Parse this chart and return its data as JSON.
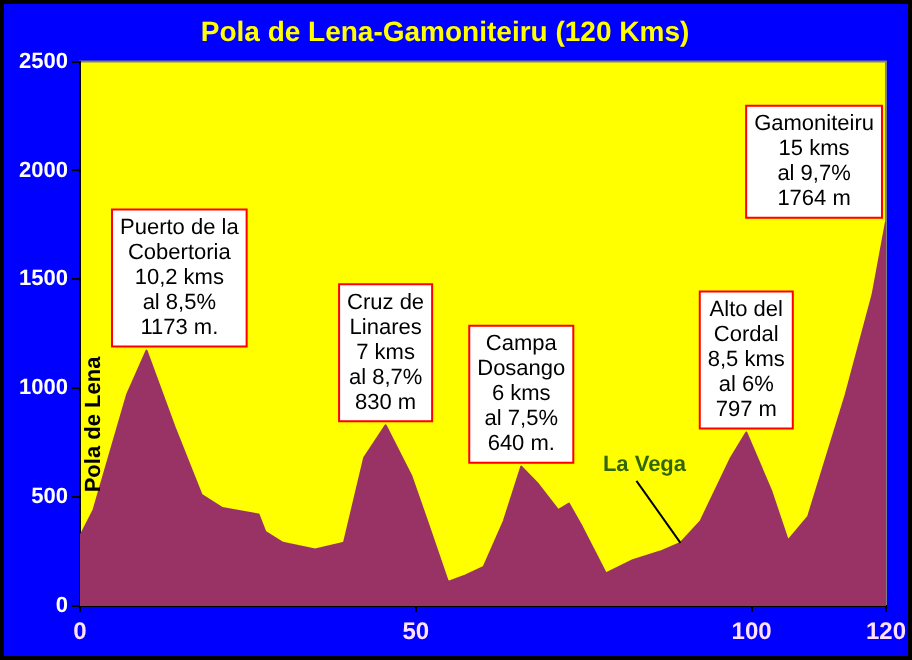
{
  "chart_data": {
    "type": "area",
    "title": "Pola de Lena-Gamoniteiru (120 Kms)",
    "x": [
      0,
      2,
      7,
      9.9,
      14.1,
      18.1,
      21.2,
      26.6,
      27.6,
      30.2,
      35,
      39.3,
      42.3,
      45.5,
      49.3,
      51.8,
      54.8,
      57.4,
      60.1,
      63.1,
      65.7,
      68.2,
      71.2,
      72.8,
      74.8,
      78.3,
      82.3,
      86.4,
      89.4,
      92.4,
      96.9,
      99.2,
      102.9,
      105.4,
      108.4,
      114,
      118,
      120
    ],
    "values": [
      320,
      440,
      970,
      1173,
      820,
      510,
      450,
      420,
      340,
      290,
      260,
      290,
      680,
      830,
      600,
      380,
      110,
      140,
      180,
      390,
      640,
      560,
      440,
      470,
      360,
      150,
      210,
      250,
      290,
      390,
      680,
      797,
      530,
      300,
      410,
      970,
      1430,
      1764
    ],
    "color": "#993366",
    "xlim": [
      0,
      120
    ],
    "xticks": [
      0,
      50,
      100,
      120
    ],
    "ylim": [
      0,
      2500
    ],
    "yticks": [
      0,
      500,
      1000,
      1500,
      2000,
      2500
    ],
    "grid": false,
    "legend": false,
    "annotations": [
      {
        "text": "Pola de Lena",
        "x": 0,
        "y": 320
      },
      {
        "text": "Puerto de la\nCobertoria\n10,2 kms\nal 8,5%\n1173 m.",
        "x": 9.9,
        "y": 1173
      },
      {
        "text": "Cruz de\nLinares\n7 kms\nal 8,7%\n830 m",
        "x": 45.5,
        "y": 830
      },
      {
        "text": "Campa\nDosango\n6 kms\nal 7,5%\n640 m.",
        "x": 65.7,
        "y": 640
      },
      {
        "text": "La Vega",
        "x": 89.4,
        "y": 290
      },
      {
        "text": "Alto del\nCordal\n8,5 kms\nal 6%\n797 m",
        "x": 99.2,
        "y": 797
      },
      {
        "text": "Gamoniteiru\n15 kms\nal 9,7%\n1764 m",
        "x": 120,
        "y": 1764
      }
    ]
  }
}
